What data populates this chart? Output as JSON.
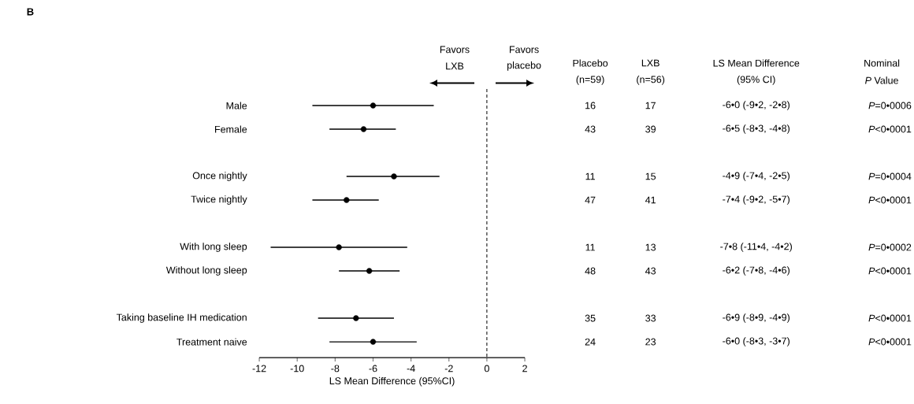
{
  "chart_data": {
    "type": "scatter",
    "orientation": "horizontal",
    "title": "B",
    "xlabel": "LS Mean Difference  (95%CI)",
    "categories": [
      "Male",
      "Female",
      null,
      "Once nightly",
      "Twice nightly",
      null,
      "With long sleep",
      "Without long sleep",
      null,
      "Taking baseline IH medication",
      "Treatment naive"
    ],
    "values": [
      -6.0,
      -6.5,
      null,
      -4.9,
      -7.4,
      null,
      -7.8,
      -6.2,
      null,
      -6.9,
      -6.0
    ],
    "errors": [
      [
        -9.2,
        -2.8
      ],
      [
        -8.3,
        -4.8
      ],
      null,
      [
        -7.4,
        -2.5
      ],
      [
        -9.2,
        -5.7
      ],
      null,
      [
        -11.4,
        -4.2
      ],
      [
        -7.8,
        -4.6
      ],
      null,
      [
        -8.9,
        -4.9
      ],
      [
        -8.3,
        -3.7
      ]
    ],
    "value_labels": [
      "-6•0 (-9•2, -2•8)",
      "-6•5 (-8•3, -4•8)",
      null,
      "-4•9 (-7•4, -2•5)",
      "-7•4 (-9•2, -5•7)",
      null,
      "-7•8 (-11•4, -4•2)",
      "-6•2 (-7•8, -4•6)",
      null,
      "-6•9 (-8•9, -4•9)",
      "-6•0 (-8•3, -3•7)"
    ],
    "color": "#000000",
    "marker": "circle",
    "xlim": [
      -12,
      2
    ],
    "xticks": [
      -12,
      -10,
      -8,
      -6,
      -4,
      -2,
      0,
      2
    ],
    "ref_lines": [
      {
        "axis": "x",
        "value": 0,
        "line_style": "dashed"
      }
    ],
    "annotations": [
      "Favors",
      "LXB",
      "Favors",
      "placebo",
      "Placebo",
      "(n=59)",
      "LXB",
      "(n=56)",
      "LS Mean Difference",
      "(95% CI)",
      "Nominal",
      "*P* Value",
      "16",
      "17",
      "*P*=0•0006",
      "43",
      "39",
      "*P*<0•0001",
      "11",
      "15",
      "*P*=0•0004",
      "47",
      "41",
      "*P*<0•0001",
      "11",
      "13",
      "*P*=0•0002",
      "48",
      "43",
      "*P*<0•0001",
      "35",
      "33",
      "*P*<0•0001",
      "24",
      "23",
      "*P*<0•0001"
    ]
  }
}
